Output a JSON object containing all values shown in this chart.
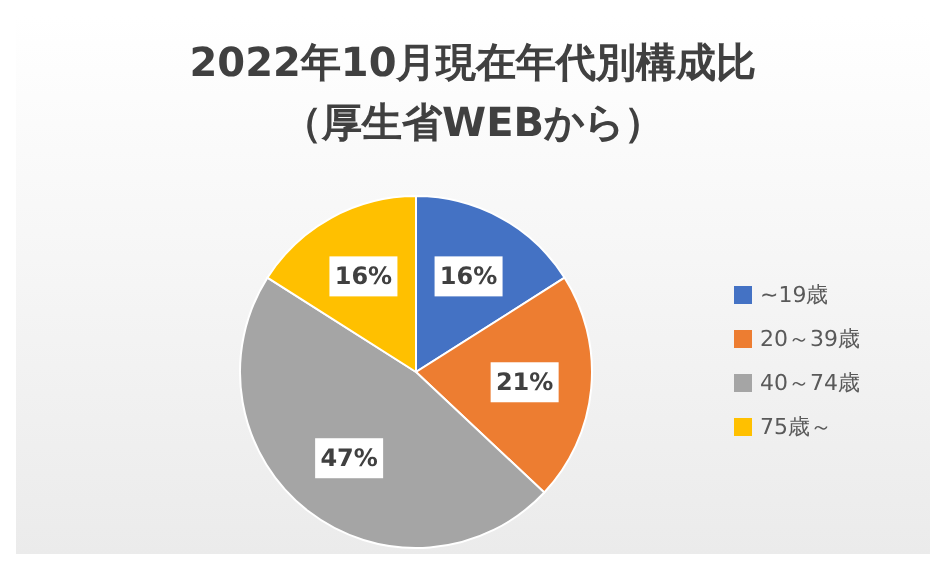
{
  "chart_data": {
    "type": "pie",
    "title": "2022年10月現在年代別構成比",
    "subtitle": "（厚生省WEBから）",
    "categories": [
      "~19歳",
      "20～39歳",
      "40～74歳",
      "75歳～"
    ],
    "values": [
      16,
      21,
      47,
      16
    ],
    "value_labels": [
      "16%",
      "21%",
      "47%",
      "16%"
    ],
    "colors": [
      "#4472c4",
      "#ed7d31",
      "#a5a5a5",
      "#ffc000"
    ],
    "legend": "right"
  }
}
